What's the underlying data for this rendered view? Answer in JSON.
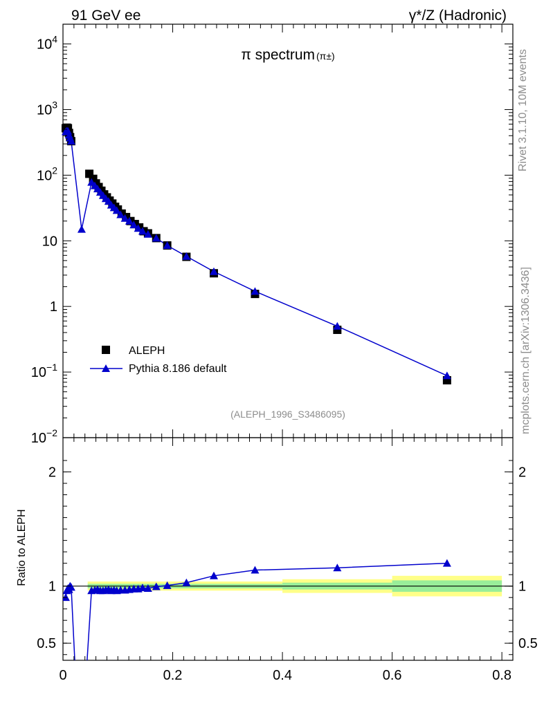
{
  "header": {
    "left": "91 GeV ee",
    "right": "γ*/Z (Hadronic)"
  },
  "side": {
    "rivet": "Rivet 3.1.10,  10M events",
    "mcplots": "mcplots.cern.ch [arXiv:1306.3436]"
  },
  "chart_data": [
    {
      "type": "scatter",
      "title": "π spectrum",
      "title_sub": "(π±)",
      "ylog": true,
      "ylim": [
        0.01,
        20000
      ],
      "xlim": [
        0,
        0.82
      ],
      "y_ticks": [
        {
          "v": 10000,
          "b": "10",
          "e": "4"
        },
        {
          "v": 1000,
          "b": "10",
          "e": "3"
        },
        {
          "v": 100,
          "b": "10",
          "e": "2"
        },
        {
          "v": 10,
          "b": "10",
          "e": ""
        },
        {
          "v": 1,
          "b": "1",
          "e": ""
        },
        {
          "v": 0.1,
          "b": "10",
          "e": "−1"
        },
        {
          "v": 0.01,
          "b": "10",
          "e": "−2"
        }
      ],
      "legend": [
        {
          "label": "ALEPH",
          "marker": "square",
          "color": "#000000"
        },
        {
          "label": "Pythia 8.186 default",
          "marker": "triangle",
          "color": "#0000cc"
        }
      ],
      "ref_label": "(ALEPH_1996_S3486095)",
      "series": [
        {
          "name": "ALEPH",
          "x": [
            0.005,
            0.007,
            0.009,
            0.011,
            0.013,
            0.015,
            0.048,
            0.055,
            0.06,
            0.065,
            0.07,
            0.075,
            0.08,
            0.085,
            0.09,
            0.095,
            0.1,
            0.107,
            0.115,
            0.123,
            0.131,
            0.139,
            0.147,
            0.155,
            0.17,
            0.19,
            0.225,
            0.275,
            0.35,
            0.5,
            0.7
          ],
          "y": [
            520,
            530,
            520,
            440,
            380,
            330,
            105,
            88,
            75,
            66,
            58,
            51,
            46,
            41,
            37,
            33,
            30,
            26,
            23,
            20,
            18,
            16,
            14,
            13,
            11,
            8.5,
            5.7,
            3.2,
            1.55,
            0.44,
            0.075
          ]
        },
        {
          "name": "Pythia 8.186 default",
          "x": [
            0.005,
            0.007,
            0.009,
            0.011,
            0.013,
            0.015,
            0.034,
            0.052,
            0.058,
            0.063,
            0.068,
            0.073,
            0.078,
            0.083,
            0.088,
            0.093,
            0.098,
            0.105,
            0.113,
            0.121,
            0.129,
            0.137,
            0.145,
            0.155,
            0.17,
            0.19,
            0.225,
            0.275,
            0.35,
            0.5,
            0.7
          ],
          "y": [
            460,
            470,
            470,
            410,
            370,
            330,
            15,
            78,
            69,
            62,
            55,
            49,
            44,
            40,
            35,
            32,
            29,
            25,
            22,
            20,
            17.5,
            15.5,
            14,
            12.6,
            11,
            8.5,
            5.8,
            3.4,
            1.7,
            0.5,
            0.088
          ]
        }
      ]
    },
    {
      "type": "line",
      "ylabel": "Ratio to ALEPH",
      "ylim": [
        0.35,
        2.3
      ],
      "xlim": [
        0,
        0.82
      ],
      "x_ticks": [
        0,
        0.2,
        0.4,
        0.6,
        0.8
      ],
      "x_tick_labels": [
        "0",
        "0.2",
        "0.4",
        "0.6",
        "0.8"
      ],
      "y_ticks": [
        0.5,
        1,
        2
      ],
      "y_tick_labels": [
        "0.5",
        "1",
        "2"
      ],
      "bands": [
        {
          "x0": 0.045,
          "x1": 0.4,
          "outer": [
            0.96,
            1.04
          ],
          "inner": [
            0.98,
            1.02
          ]
        },
        {
          "x0": 0.4,
          "x1": 0.6,
          "outer": [
            0.94,
            1.06
          ],
          "inner": [
            0.97,
            1.03
          ]
        },
        {
          "x0": 0.6,
          "x1": 0.8,
          "outer": [
            0.91,
            1.09
          ],
          "inner": [
            0.95,
            1.05
          ]
        }
      ],
      "series": [
        {
          "name": "Pythia 8.186 default",
          "x": [
            0.005,
            0.007,
            0.009,
            0.011,
            0.013,
            0.015,
            0.023,
            0.042,
            0.052,
            0.058,
            0.063,
            0.068,
            0.073,
            0.078,
            0.083,
            0.088,
            0.093,
            0.098,
            0.105,
            0.113,
            0.121,
            0.129,
            0.137,
            0.145,
            0.155,
            0.17,
            0.19,
            0.225,
            0.275,
            0.35,
            0.5,
            0.7
          ],
          "y": [
            0.9,
            0.96,
            0.98,
            0.97,
            1.0,
            0.99,
            0.2,
            0.2,
            0.96,
            0.965,
            0.97,
            0.96,
            0.96,
            0.965,
            0.97,
            0.96,
            0.965,
            0.96,
            0.965,
            0.965,
            0.97,
            0.975,
            0.975,
            0.985,
            0.98,
            0.995,
            1.005,
            1.03,
            1.09,
            1.14,
            1.16,
            1.2
          ]
        }
      ]
    }
  ]
}
